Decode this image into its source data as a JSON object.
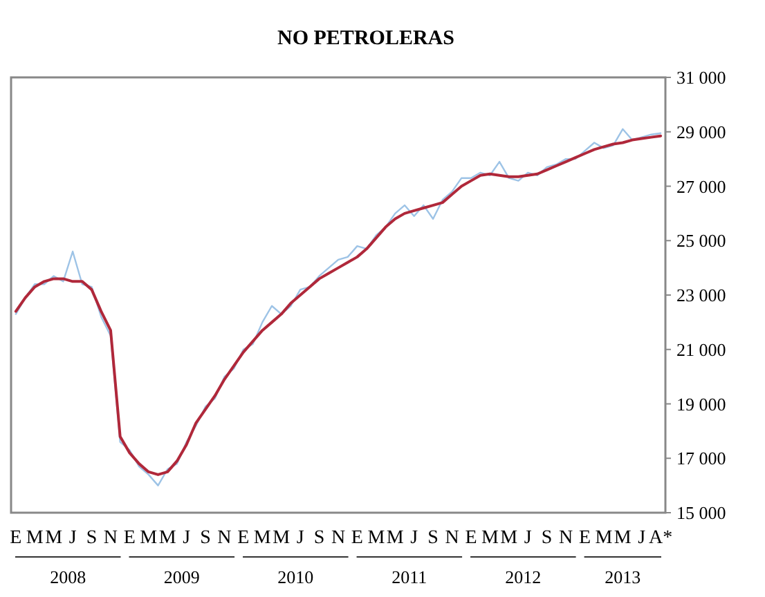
{
  "chart_data": {
    "type": "line",
    "title": "NO PETROLERAS",
    "categories": [
      "E",
      null,
      "M",
      null,
      "M",
      null,
      "J",
      null,
      "S",
      null,
      "N",
      null,
      "E",
      null,
      "M",
      null,
      "M",
      null,
      "J",
      null,
      "S",
      null,
      "N",
      null,
      "E",
      null,
      "M",
      null,
      "M",
      null,
      "J",
      null,
      "S",
      null,
      "N",
      null,
      "E",
      null,
      "M",
      null,
      "M",
      null,
      "J",
      null,
      "S",
      null,
      "N",
      null,
      "E",
      null,
      "M",
      null,
      "M",
      null,
      "J",
      null,
      "S",
      null,
      "N",
      null,
      "E",
      null,
      "M",
      null,
      "M",
      null,
      "J",
      null,
      "A*"
    ],
    "series": [
      {
        "color": "#9dc3e6",
        "values": [
          22300,
          22900,
          23400,
          23400,
          23700,
          23500,
          24600,
          23400,
          23300,
          22200,
          21500,
          17600,
          17300,
          16700,
          16400,
          16000,
          16600,
          16800,
          17600,
          18200,
          18900,
          19200,
          20000,
          20300,
          21000,
          21200,
          22000,
          22600,
          22300,
          22600,
          23200,
          23300,
          23700,
          24000,
          24300,
          24400,
          24800,
          24700,
          25200,
          25500,
          26000,
          26300,
          25900,
          26300,
          25800,
          26500,
          26800,
          27300,
          27300,
          27500,
          27400,
          27900,
          27300,
          27200,
          27500,
          27400,
          27700,
          27800,
          28000,
          28000,
          28300,
          28600,
          28400,
          28500,
          29100,
          28700,
          28800,
          28900,
          28950
        ]
      },
      {
        "color": "#b0283a",
        "values": [
          22400,
          22900,
          23300,
          23500,
          23600,
          23600,
          23500,
          23500,
          23200,
          22400,
          21700,
          17800,
          17200,
          16800,
          16500,
          16400,
          16500,
          16900,
          17500,
          18300,
          18800,
          19300,
          19900,
          20400,
          20900,
          21300,
          21700,
          22000,
          22300,
          22700,
          23000,
          23300,
          23600,
          23800,
          24000,
          24200,
          24400,
          24700,
          25100,
          25500,
          25800,
          26000,
          26100,
          26200,
          26300,
          26400,
          26700,
          27000,
          27200,
          27400,
          27450,
          27400,
          27350,
          27350,
          27400,
          27450,
          27600,
          27750,
          27900,
          28050,
          28200,
          28350,
          28450,
          28550,
          28600,
          28700,
          28750,
          28800,
          28850
        ]
      }
    ],
    "ylim": [
      15000,
      31000
    ],
    "yticks": [
      {
        "value": 15000,
        "label": "15 000"
      },
      {
        "value": 17000,
        "label": "17 000"
      },
      {
        "value": 19000,
        "label": "19 000"
      },
      {
        "value": 21000,
        "label": "21 000"
      },
      {
        "value": 23000,
        "label": "23 000"
      },
      {
        "value": 25000,
        "label": "25 000"
      },
      {
        "value": 27000,
        "label": "27 000"
      },
      {
        "value": 29000,
        "label": "29 000"
      },
      {
        "value": 31000,
        "label": "31 000"
      }
    ],
    "annotations": [
      "2008",
      "2009",
      "2010",
      "2011",
      "2012",
      "2013"
    ],
    "grid": false,
    "marker": "none",
    "line_style": "solid"
  }
}
